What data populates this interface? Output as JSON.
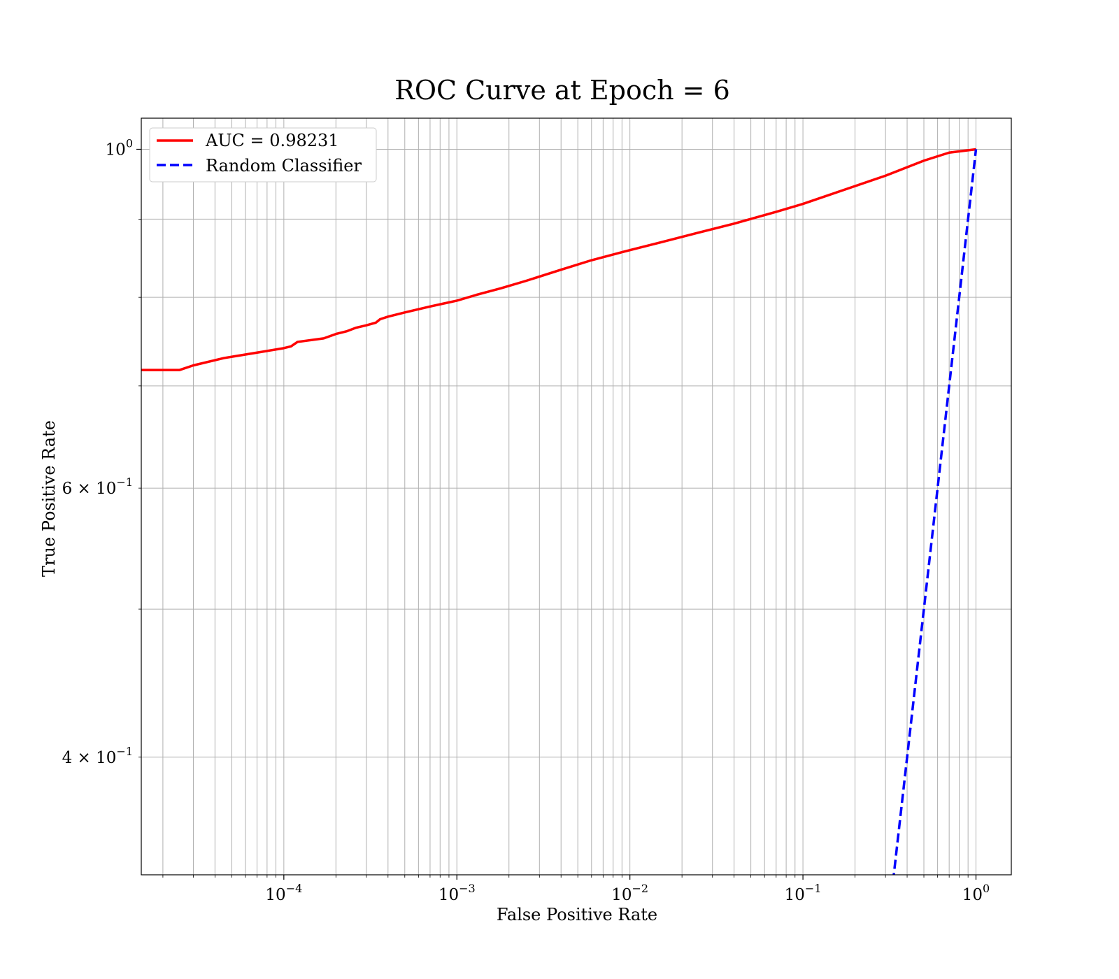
{
  "chart_data": {
    "type": "line",
    "title": "ROC Curve at Epoch = 6",
    "xlabel": "False Positive Rate",
    "ylabel": "True Positive Rate",
    "xscale": "log",
    "yscale": "log",
    "xlim": [
      1.5e-05,
      1.6
    ],
    "ylim": [
      0.335,
      1.048
    ],
    "grid": true,
    "grid_minor": true,
    "legend_position": "top-left",
    "x_tick_labels": [
      {
        "base": "10",
        "exp": "−4"
      },
      {
        "base": "10",
        "exp": "−3"
      },
      {
        "base": "10",
        "exp": "−2"
      },
      {
        "base": "10",
        "exp": "−1"
      },
      {
        "base": "10",
        "exp": "0"
      }
    ],
    "y_tick_labels": [
      {
        "mantissa": "",
        "base": "10",
        "exp": "0"
      },
      {
        "mantissa": "6 × ",
        "base": "10",
        "exp": "−1"
      },
      {
        "mantissa": "4 × ",
        "base": "10",
        "exp": "−1"
      }
    ],
    "series": [
      {
        "name": "AUC = 0.98231",
        "color": "#ff0000",
        "style": "solid",
        "x": [
          1.5e-05,
          2.5e-05,
          3e-05,
          4.5e-05,
          7e-05,
          0.0001,
          0.00011,
          0.00012,
          0.00017,
          0.0002,
          0.00023,
          0.00026,
          0.0003,
          0.00034,
          0.00036,
          0.0004,
          0.0005,
          0.0007,
          0.001,
          0.0013,
          0.0018,
          0.0025,
          0.004,
          0.006,
          0.01,
          0.015,
          0.025,
          0.04,
          0.07,
          0.1,
          0.2,
          0.3,
          0.5,
          0.7,
          1.0
        ],
        "y": [
          0.717,
          0.717,
          0.722,
          0.73,
          0.736,
          0.741,
          0.743,
          0.748,
          0.752,
          0.757,
          0.76,
          0.764,
          0.767,
          0.77,
          0.774,
          0.777,
          0.782,
          0.789,
          0.796,
          0.803,
          0.811,
          0.82,
          0.834,
          0.846,
          0.859,
          0.869,
          0.882,
          0.894,
          0.91,
          0.921,
          0.946,
          0.961,
          0.983,
          0.995,
          1.0
        ]
      },
      {
        "name": "Random Classifier",
        "color": "#0000ff",
        "style": "dashed",
        "x": [
          0.0,
          1.0
        ],
        "y": [
          0.0,
          1.0
        ]
      }
    ]
  }
}
